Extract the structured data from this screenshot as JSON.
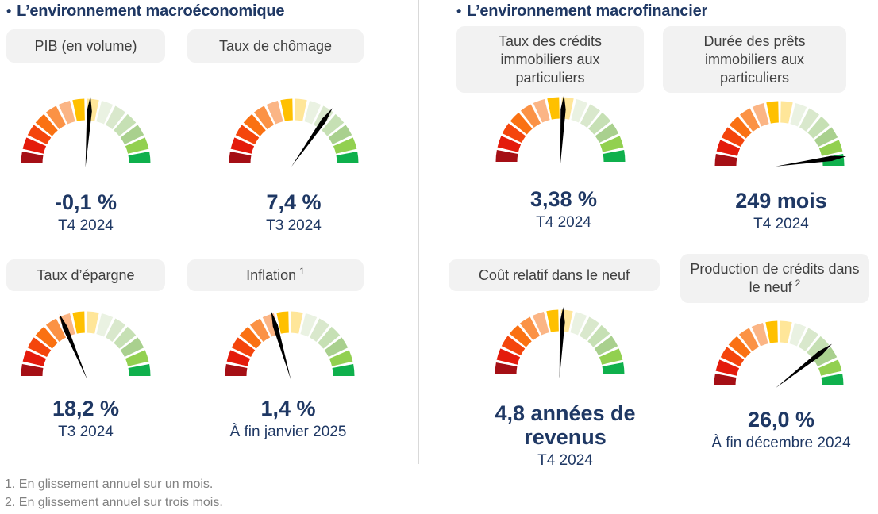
{
  "colors": {
    "title": "#1F3864",
    "value_text": "#1F3864",
    "pill_bg": "#F2F2F2",
    "pill_text": "#3F3F3F",
    "divider": "#D9D9D9",
    "footnote_text": "#808080",
    "needle": "#000000",
    "gauge_scale": [
      "#A50F15",
      "#E41B0C",
      "#F4450C",
      "#FA7112",
      "#FB9245",
      "#FBB585",
      "#FFC000",
      "#FFE699",
      "#EAF2E2",
      "#D9E8CC",
      "#C6E0B4",
      "#A9D08E",
      "#92D050",
      "#0FB04C"
    ]
  },
  "sections": [
    {
      "bullet": "•",
      "title": "L’environnement macroéconomique",
      "gauges": [
        {
          "label": "PIB (en volume)",
          "footnote_ref": "",
          "value": "-0,1 %",
          "period": "T4 2024",
          "needle_deg": 4
        },
        {
          "label": "Taux de chômage",
          "footnote_ref": "",
          "value": "7,4 %",
          "period": "T3 2024",
          "needle_deg": 35
        },
        {
          "label": "Taux d’épargne",
          "footnote_ref": "",
          "value": "18,2 %",
          "period": "T3 2024",
          "needle_deg": -23
        },
        {
          "label": "Inflation",
          "footnote_ref": "1",
          "value": "1,4 %",
          "period": "À fin janvier 2025",
          "needle_deg": -16
        }
      ]
    },
    {
      "bullet": "•",
      "title": "L’environnement macrofinancier",
      "gauges": [
        {
          "label": "Taux des crédits immobiliers aux particuliers",
          "footnote_ref": "",
          "value": "3,38 %",
          "period": "T4 2024",
          "needle_deg": 3
        },
        {
          "label": "Durée des prêts immobiliers aux particuliers",
          "footnote_ref": "",
          "value": "249 mois",
          "period": "T4 2024",
          "needle_deg": 82
        },
        {
          "label": "Coût relatif dans le neuf",
          "footnote_ref": "",
          "value": "4,8 années de revenus",
          "period": "T4 2024",
          "needle_deg": 3
        },
        {
          "label": "Production de crédits dans le neuf",
          "footnote_ref": "2",
          "value": "26,0 %",
          "period": "À fin décembre 2024",
          "needle_deg": 52
        }
      ]
    }
  ],
  "footnotes": [
    "1. En glissement annuel sur un mois.",
    "2. En glissement annuel sur trois mois."
  ],
  "chart_data": [
    {
      "type": "gauge",
      "title": "PIB (en volume)",
      "value": -0.1,
      "value_text": "-0,1 %",
      "unit": "%",
      "period": "T4 2024",
      "needle_deg_from_vertical": 4,
      "segments": 14,
      "scale": "dark red (left) to bright green (right), 180° arc"
    },
    {
      "type": "gauge",
      "title": "Taux de chômage",
      "value": 7.4,
      "value_text": "7,4 %",
      "unit": "%",
      "period": "T3 2024",
      "needle_deg_from_vertical": 35,
      "segments": 14,
      "scale": "dark red (left) to bright green (right), 180° arc"
    },
    {
      "type": "gauge",
      "title": "Taux d’épargne",
      "value": 18.2,
      "value_text": "18,2 %",
      "unit": "%",
      "period": "T3 2024",
      "needle_deg_from_vertical": -23,
      "segments": 14,
      "scale": "dark red (left) to bright green (right), 180° arc"
    },
    {
      "type": "gauge",
      "title": "Inflation",
      "value": 1.4,
      "value_text": "1,4 %",
      "unit": "%",
      "period": "À fin janvier 2025",
      "needle_deg_from_vertical": -16,
      "segments": 14,
      "scale": "dark red (left) to bright green (right), 180° arc"
    },
    {
      "type": "gauge",
      "title": "Taux des crédits immobiliers aux particuliers",
      "value": 3.38,
      "value_text": "3,38 %",
      "unit": "%",
      "period": "T4 2024",
      "needle_deg_from_vertical": 3,
      "segments": 14,
      "scale": "dark red (left) to bright green (right), 180° arc"
    },
    {
      "type": "gauge",
      "title": "Durée des prêts immobiliers aux particuliers",
      "value": 249,
      "value_text": "249 mois",
      "unit": "mois",
      "period": "T4 2024",
      "needle_deg_from_vertical": 82,
      "segments": 14,
      "scale": "dark red (left) to bright green (right), 180° arc"
    },
    {
      "type": "gauge",
      "title": "Coût relatif dans le neuf",
      "value": 4.8,
      "value_text": "4,8 années de revenus",
      "unit": "années de revenus",
      "period": "T4 2024",
      "needle_deg_from_vertical": 3,
      "segments": 14,
      "scale": "dark red (left) to bright green (right), 180° arc"
    },
    {
      "type": "gauge",
      "title": "Production de crédits dans le neuf",
      "value": 26.0,
      "value_text": "26,0 %",
      "unit": "%",
      "period": "À fin décembre 2024",
      "needle_deg_from_vertical": 52,
      "segments": 14,
      "scale": "dark red (left) to bright green (right), 180° arc"
    }
  ]
}
